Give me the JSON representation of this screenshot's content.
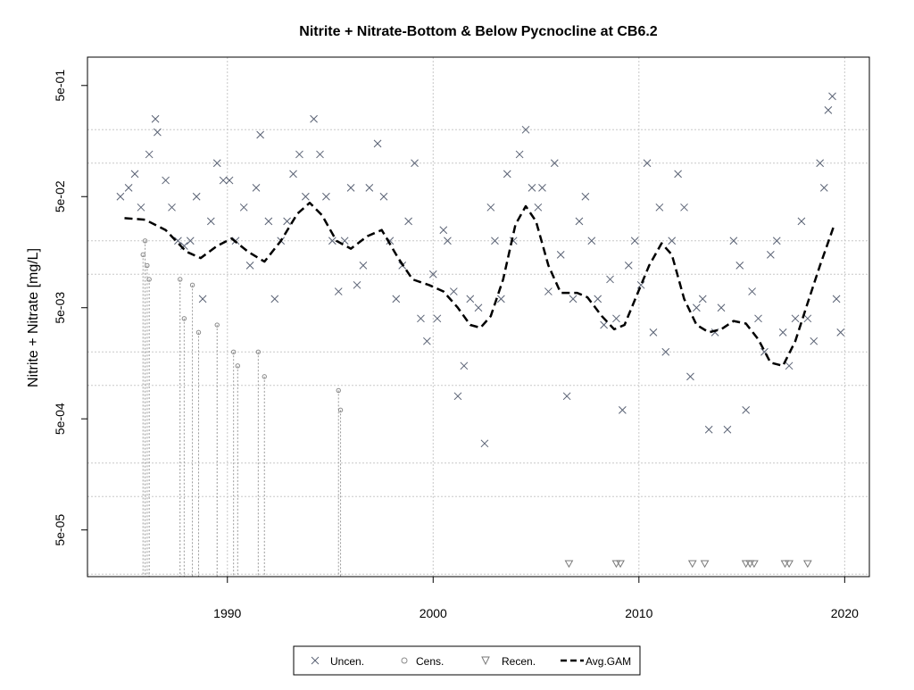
{
  "chart_data": {
    "type": "scatter",
    "title": "Nitrite + Nitrate-Bottom & Below Pycnocline at CB6.2",
    "xlabel": "",
    "ylabel": "Nitrite + Nitrate [mg/L]",
    "y_scale": "log",
    "xlim": [
      1983.2,
      2021.2
    ],
    "ylim": [
      1.9e-05,
      0.9
    ],
    "x_ticks": [
      1990,
      2000,
      2010,
      2020
    ],
    "x_tick_labels": [
      "1990",
      "2000",
      "2010",
      "2020"
    ],
    "y_ticks": [
      5e-05,
      0.0005,
      0.005,
      0.05,
      0.5
    ],
    "y_tick_labels": [
      "5e-05",
      "5e-04",
      "5e-03",
      "5e-02",
      "5e-01"
    ],
    "grid": true,
    "grid_y_values": [
      2e-05,
      0.0001,
      0.0002,
      0.001,
      0.002,
      0.01,
      0.02,
      0.1,
      0.2
    ],
    "grid_x_values": [
      1990,
      2000,
      2010,
      2020
    ],
    "legend_position": "bottom-center",
    "colors": {
      "uncensored": "#5a6274",
      "censored": "#8a8a8a",
      "recensored": "#7a7a7a",
      "gam": "#000000",
      "grid": "#c8c8c8"
    },
    "series": [
      {
        "name": "Uncen.",
        "marker": "x",
        "points": [
          [
            1984.8,
            0.05
          ],
          [
            1985.2,
            0.06
          ],
          [
            1985.5,
            0.08
          ],
          [
            1985.8,
            0.04
          ],
          [
            1986.2,
            0.12
          ],
          [
            1986.5,
            0.25
          ],
          [
            1986.6,
            0.19
          ],
          [
            1987.0,
            0.07
          ],
          [
            1987.3,
            0.04
          ],
          [
            1987.6,
            0.02
          ],
          [
            1987.9,
            0.018
          ],
          [
            1988.2,
            0.02
          ],
          [
            1988.5,
            0.05
          ],
          [
            1988.8,
            0.006
          ],
          [
            1989.2,
            0.03
          ],
          [
            1989.5,
            0.1
          ],
          [
            1989.8,
            0.07
          ],
          [
            1990.1,
            0.07
          ],
          [
            1990.4,
            0.02
          ],
          [
            1990.8,
            0.04
          ],
          [
            1991.1,
            0.012
          ],
          [
            1991.4,
            0.06
          ],
          [
            1991.6,
            0.18
          ],
          [
            1992.0,
            0.03
          ],
          [
            1992.3,
            0.006
          ],
          [
            1992.6,
            0.02
          ],
          [
            1992.9,
            0.03
          ],
          [
            1993.2,
            0.08
          ],
          [
            1993.5,
            0.12
          ],
          [
            1993.8,
            0.05
          ],
          [
            1994.2,
            0.25
          ],
          [
            1994.5,
            0.12
          ],
          [
            1994.8,
            0.05
          ],
          [
            1995.1,
            0.02
          ],
          [
            1995.4,
            0.007
          ],
          [
            1995.7,
            0.02
          ],
          [
            1996.0,
            0.06
          ],
          [
            1996.3,
            0.008
          ],
          [
            1996.6,
            0.012
          ],
          [
            1996.9,
            0.06
          ],
          [
            1997.3,
            0.15
          ],
          [
            1997.6,
            0.05
          ],
          [
            1997.9,
            0.02
          ],
          [
            1998.2,
            0.006
          ],
          [
            1998.5,
            0.012
          ],
          [
            1998.8,
            0.03
          ],
          [
            1999.1,
            0.1
          ],
          [
            1999.4,
            0.004
          ],
          [
            1999.7,
            0.0025
          ],
          [
            2000.0,
            0.01
          ],
          [
            2000.2,
            0.004
          ],
          [
            2000.5,
            0.025
          ],
          [
            2000.7,
            0.02
          ],
          [
            2001.0,
            0.007
          ],
          [
            2001.2,
            0.0008
          ],
          [
            2001.5,
            0.0015
          ],
          [
            2001.8,
            0.006
          ],
          [
            2002.2,
            0.005
          ],
          [
            2002.5,
            0.0003
          ],
          [
            2002.8,
            0.04
          ],
          [
            2003.0,
            0.02
          ],
          [
            2003.3,
            0.006
          ],
          [
            2003.6,
            0.08
          ],
          [
            2003.9,
            0.02
          ],
          [
            2004.2,
            0.12
          ],
          [
            2004.5,
            0.2
          ],
          [
            2004.8,
            0.06
          ],
          [
            2005.1,
            0.04
          ],
          [
            2005.3,
            0.06
          ],
          [
            2005.6,
            0.007
          ],
          [
            2005.9,
            0.1
          ],
          [
            2006.2,
            0.015
          ],
          [
            2006.5,
            0.0008
          ],
          [
            2006.8,
            0.006
          ],
          [
            2007.1,
            0.03
          ],
          [
            2007.4,
            0.05
          ],
          [
            2007.7,
            0.02
          ],
          [
            2008.0,
            0.006
          ],
          [
            2008.3,
            0.0035
          ],
          [
            2008.6,
            0.009
          ],
          [
            2008.9,
            0.004
          ],
          [
            2009.2,
            0.0006
          ],
          [
            2009.5,
            0.012
          ],
          [
            2009.8,
            0.02
          ],
          [
            2010.1,
            0.008
          ],
          [
            2010.4,
            0.1
          ],
          [
            2010.7,
            0.003
          ],
          [
            2011.0,
            0.04
          ],
          [
            2011.3,
            0.002
          ],
          [
            2011.6,
            0.02
          ],
          [
            2011.9,
            0.08
          ],
          [
            2012.2,
            0.04
          ],
          [
            2012.5,
            0.0012
          ],
          [
            2012.8,
            0.005
          ],
          [
            2013.1,
            0.006
          ],
          [
            2013.4,
            0.0004
          ],
          [
            2013.7,
            0.003
          ],
          [
            2014.0,
            0.005
          ],
          [
            2014.3,
            0.0004
          ],
          [
            2014.6,
            0.02
          ],
          [
            2014.9,
            0.012
          ],
          [
            2015.2,
            0.0006
          ],
          [
            2015.5,
            0.007
          ],
          [
            2015.8,
            0.004
          ],
          [
            2016.1,
            0.002
          ],
          [
            2016.4,
            0.015
          ],
          [
            2016.7,
            0.02
          ],
          [
            2017.0,
            0.003
          ],
          [
            2017.3,
            0.0015
          ],
          [
            2017.6,
            0.004
          ],
          [
            2017.9,
            0.03
          ],
          [
            2018.2,
            0.004
          ],
          [
            2018.5,
            0.0025
          ],
          [
            2018.8,
            0.1
          ],
          [
            2019.0,
            0.06
          ],
          [
            2019.2,
            0.3
          ],
          [
            2019.4,
            0.4
          ],
          [
            2019.6,
            0.006
          ],
          [
            2019.8,
            0.003
          ]
        ]
      },
      {
        "name": "Cens.",
        "marker": "o",
        "points": [
          [
            1985.9,
            0.015
          ],
          [
            1986.0,
            0.02
          ],
          [
            1986.1,
            0.012
          ],
          [
            1986.2,
            0.009
          ],
          [
            1987.7,
            0.009
          ],
          [
            1987.9,
            0.004
          ],
          [
            1988.3,
            0.008
          ],
          [
            1988.6,
            0.003
          ],
          [
            1989.5,
            0.0035
          ],
          [
            1990.3,
            0.002
          ],
          [
            1990.5,
            0.0015
          ],
          [
            1991.5,
            0.002
          ],
          [
            1991.8,
            0.0012
          ],
          [
            1995.4,
            0.0009
          ],
          [
            1995.5,
            0.0006
          ]
        ]
      },
      {
        "name": "Recen.",
        "marker": "triangle-down",
        "points": [
          [
            2006.6,
            2.5e-05
          ],
          [
            2008.9,
            2.5e-05
          ],
          [
            2009.1,
            2.5e-05
          ],
          [
            2012.6,
            2.5e-05
          ],
          [
            2013.2,
            2.5e-05
          ],
          [
            2015.2,
            2.5e-05
          ],
          [
            2015.4,
            2.5e-05
          ],
          [
            2015.6,
            2.5e-05
          ],
          [
            2017.1,
            2.5e-05
          ],
          [
            2017.3,
            2.5e-05
          ],
          [
            2018.2,
            2.5e-05
          ]
        ]
      },
      {
        "name": "Avg.GAM",
        "line": "dashed",
        "x": [
          1985.0,
          1986.0,
          1987.0,
          1988.0,
          1988.7,
          1989.5,
          1990.2,
          1991.0,
          1991.8,
          1992.6,
          1993.4,
          1994.0,
          1994.6,
          1995.3,
          1996.0,
          1996.8,
          1997.5,
          1998.3,
          1999.0,
          1999.8,
          2000.5,
          2001.2,
          2001.8,
          2002.3,
          2002.8,
          2003.4,
          2004.0,
          2004.5,
          2005.0,
          2005.6,
          2006.2,
          2007.0,
          2007.5,
          2008.2,
          2008.8,
          2009.3,
          2009.9,
          2010.5,
          2011.1,
          2011.6,
          2012.2,
          2012.8,
          2013.4,
          2014.0,
          2014.6,
          2015.2,
          2015.8,
          2016.4,
          2017.0,
          2017.6,
          2018.2,
          2018.8,
          2019.5
        ],
        "y": [
          0.032,
          0.031,
          0.025,
          0.016,
          0.014,
          0.018,
          0.021,
          0.016,
          0.013,
          0.02,
          0.035,
          0.044,
          0.034,
          0.02,
          0.017,
          0.022,
          0.025,
          0.014,
          0.009,
          0.008,
          0.007,
          0.005,
          0.0035,
          0.0033,
          0.0042,
          0.009,
          0.028,
          0.041,
          0.03,
          0.012,
          0.0068,
          0.0068,
          0.0062,
          0.0042,
          0.0032,
          0.0035,
          0.0065,
          0.012,
          0.019,
          0.015,
          0.006,
          0.0035,
          0.003,
          0.0032,
          0.0038,
          0.0036,
          0.0026,
          0.0016,
          0.0015,
          0.0025,
          0.0055,
          0.012,
          0.028
        ]
      }
    ]
  }
}
